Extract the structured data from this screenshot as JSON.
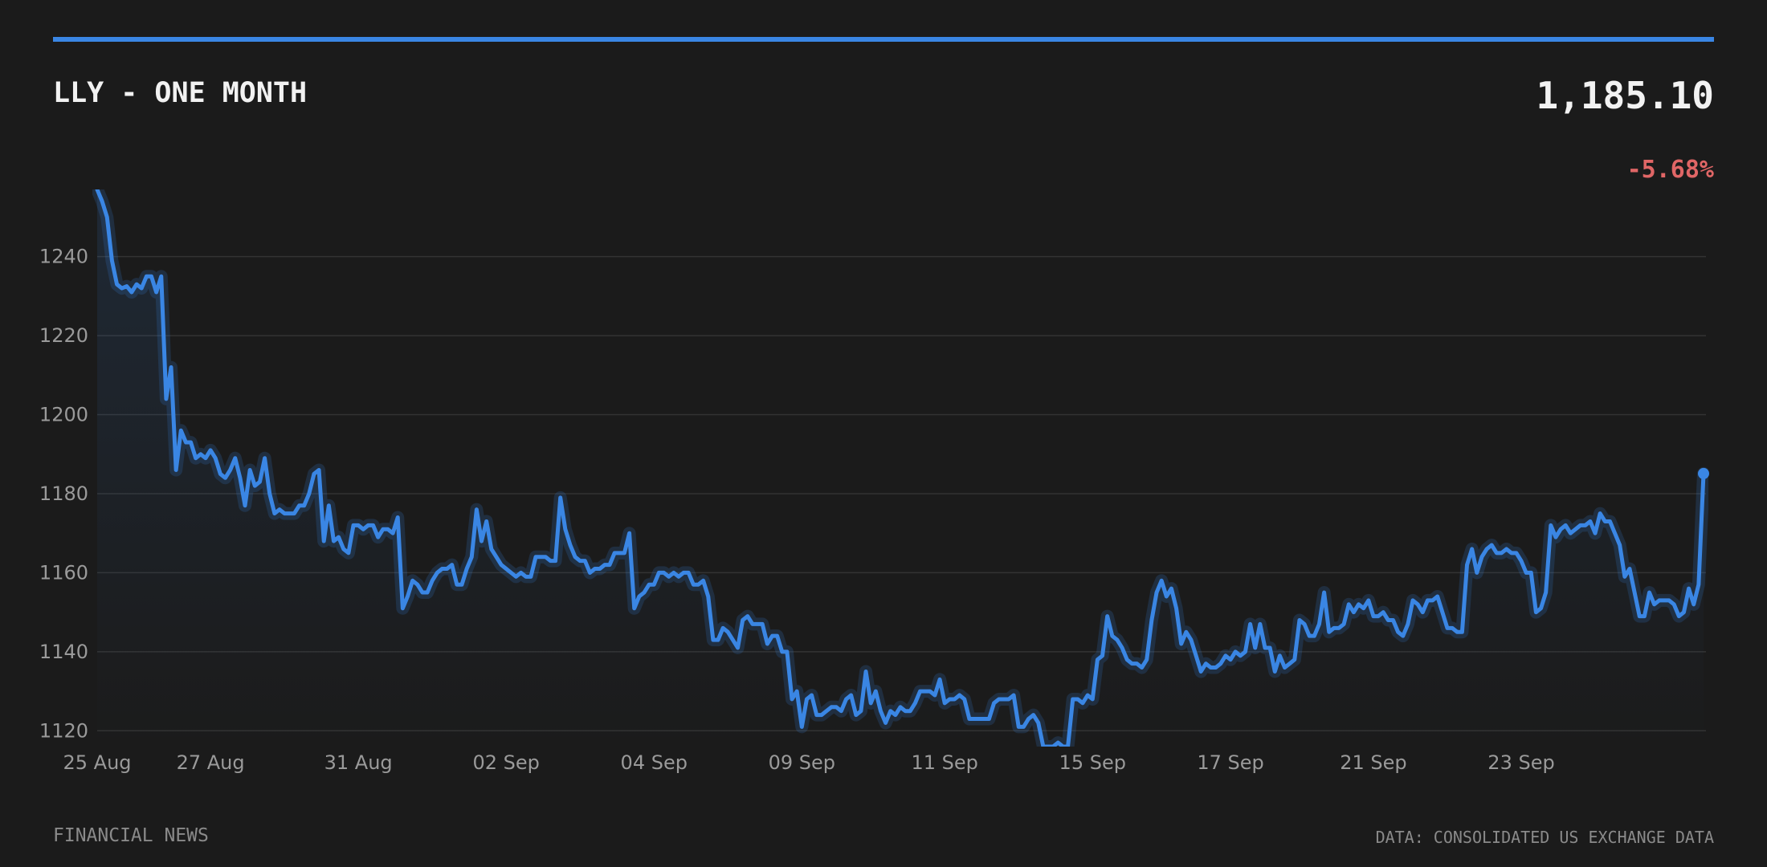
{
  "header": {
    "title": "LLY - ONE MONTH",
    "price": "1,185.10",
    "change": "-5.68%"
  },
  "footer": {
    "left": "FINANCIAL NEWS",
    "right": "DATA: CONSOLIDATED US EXCHANGE DATA"
  },
  "colors": {
    "background": "#1b1b1b",
    "accent": "#3a86e4",
    "negative": "#e06666",
    "grid": "#333333",
    "text_muted": "#9a9a9a"
  },
  "chart_data": {
    "type": "area",
    "title": "LLY - ONE MONTH",
    "xlabel": "",
    "ylabel": "",
    "ylim": [
      1116,
      1257
    ],
    "y_ticks": [
      1120,
      1140,
      1160,
      1180,
      1200,
      1220,
      1240
    ],
    "x_ticks": [
      {
        "label": "25 Aug",
        "index": 0
      },
      {
        "label": "27 Aug",
        "index": 23
      },
      {
        "label": "31 Aug",
        "index": 53
      },
      {
        "label": "02 Sep",
        "index": 83
      },
      {
        "label": "04 Sep",
        "index": 113
      },
      {
        "label": "09 Sep",
        "index": 143
      },
      {
        "label": "11 Sep",
        "index": 172
      },
      {
        "label": "15 Sep",
        "index": 202
      },
      {
        "label": "17 Sep",
        "index": 230
      },
      {
        "label": "21 Sep",
        "index": 259
      },
      {
        "label": "23 Sep",
        "index": 289
      }
    ],
    "grid": true,
    "legend": "none",
    "series": [
      {
        "values": [
          1257,
          1254,
          1250,
          1239,
          1233,
          1232,
          1232.5,
          1231,
          1233,
          1232,
          1235,
          1235,
          1231,
          1235,
          1204,
          1212,
          1186,
          1196,
          1193,
          1193,
          1189,
          1190,
          1189,
          1191,
          1189,
          1185,
          1184,
          1186,
          1189,
          1184,
          1177,
          1186,
          1182,
          1183,
          1189,
          1180,
          1175,
          1176,
          1175,
          1175,
          1175,
          1177,
          1177,
          1180,
          1185,
          1186,
          1168,
          1177,
          1168,
          1169,
          1166,
          1165,
          1172,
          1172,
          1171,
          1172,
          1172,
          1169,
          1171,
          1171,
          1170,
          1174,
          1151,
          1154,
          1158,
          1157,
          1155,
          1155,
          1158,
          1160,
          1161,
          1161,
          1162,
          1157,
          1157,
          1161,
          1164,
          1176,
          1168,
          1173,
          1166,
          1164,
          1162,
          1161,
          1160,
          1159,
          1160,
          1159,
          1159,
          1164,
          1164,
          1164,
          1163,
          1163,
          1179,
          1171,
          1167,
          1164,
          1163,
          1163,
          1160,
          1161,
          1161,
          1162,
          1162,
          1165,
          1165,
          1165,
          1170,
          1151,
          1154,
          1155,
          1157,
          1157,
          1160,
          1160,
          1159,
          1160,
          1159,
          1160,
          1160,
          1157,
          1157,
          1158,
          1154,
          1143,
          1143,
          1146,
          1145,
          1143,
          1141,
          1148,
          1149,
          1147,
          1147,
          1147,
          1142,
          1144,
          1144,
          1140,
          1140,
          1128,
          1130,
          1121,
          1128,
          1129,
          1124,
          1124,
          1125,
          1126,
          1126,
          1125,
          1128,
          1129,
          1124,
          1125,
          1135,
          1127,
          1130,
          1125,
          1122,
          1125,
          1124,
          1126,
          1125,
          1125,
          1127,
          1130,
          1130,
          1130,
          1129,
          1133,
          1127,
          1128,
          1128,
          1129,
          1128,
          1123,
          1123,
          1123,
          1123,
          1123,
          1127,
          1128,
          1128,
          1128,
          1129,
          1121,
          1121,
          1123,
          1124,
          1122,
          1116,
          1116,
          1116,
          1117,
          1116,
          1116,
          1128,
          1128,
          1127,
          1129,
          1128,
          1138,
          1139,
          1149,
          1144,
          1143,
          1141,
          1138,
          1137,
          1137,
          1136,
          1138,
          1148,
          1155,
          1158,
          1154,
          1156,
          1151,
          1142,
          1145,
          1143,
          1139,
          1135,
          1137,
          1136,
          1136,
          1137,
          1139,
          1138,
          1140,
          1139,
          1140,
          1147,
          1141,
          1147,
          1141,
          1141,
          1135,
          1139,
          1136,
          1137,
          1138,
          1148,
          1147,
          1144,
          1144,
          1147,
          1155,
          1145,
          1146,
          1146,
          1147,
          1152,
          1150,
          1152,
          1151,
          1153,
          1149,
          1149,
          1150,
          1148,
          1148,
          1145,
          1144,
          1147,
          1153,
          1152,
          1150,
          1153,
          1153,
          1154,
          1150,
          1146,
          1146,
          1145,
          1145,
          1162,
          1166,
          1160,
          1164,
          1166,
          1167,
          1165,
          1165,
          1166,
          1165,
          1165,
          1163,
          1160,
          1160,
          1150,
          1151,
          1155,
          1172,
          1169,
          1171,
          1172,
          1170,
          1171,
          1172,
          1172,
          1173,
          1170,
          1175,
          1173,
          1173,
          1170,
          1167,
          1159,
          1161,
          1155,
          1149,
          1149,
          1155,
          1152,
          1153,
          1153,
          1153,
          1152,
          1149,
          1150,
          1156,
          1152,
          1157,
          1185.1
        ]
      }
    ]
  }
}
